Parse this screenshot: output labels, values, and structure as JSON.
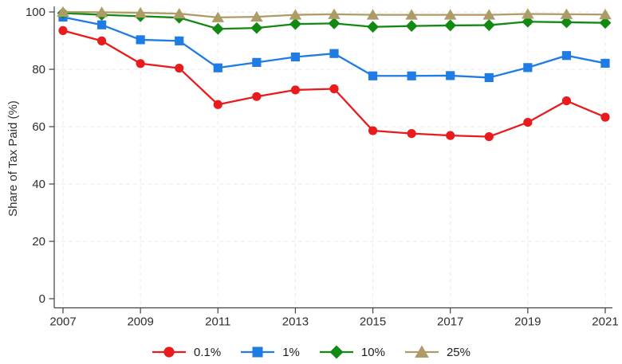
{
  "chart_data": {
    "type": "line",
    "title": "",
    "xlabel": "",
    "ylabel": "Share of Tax Paid (%)",
    "x": [
      2007,
      2008,
      2009,
      2010,
      2011,
      2012,
      2013,
      2014,
      2015,
      2016,
      2017,
      2018,
      2019,
      2020,
      2021
    ],
    "series": [
      {
        "name": "0.1%",
        "marker": "circle",
        "color": "#e81b1d",
        "values": [
          93.5,
          89.9,
          82.0,
          80.4,
          67.7,
          70.5,
          72.8,
          73.2,
          58.6,
          57.6,
          56.9,
          56.5,
          61.5,
          69.0,
          63.3
        ]
      },
      {
        "name": "1%",
        "marker": "square",
        "color": "#1f7ce4",
        "values": [
          98.2,
          95.5,
          90.3,
          89.9,
          80.5,
          82.4,
          84.3,
          85.5,
          77.7,
          77.7,
          77.8,
          77.1,
          80.6,
          84.8,
          82.1
        ]
      },
      {
        "name": "10%",
        "marker": "diamond",
        "color": "#128a12",
        "values": [
          99.6,
          99.0,
          98.5,
          98.0,
          94.1,
          94.4,
          95.8,
          96.0,
          94.8,
          95.1,
          95.3,
          95.4,
          96.6,
          96.4,
          96.2
        ]
      },
      {
        "name": "25%",
        "marker": "triangle",
        "color": "#ad9c66",
        "values": [
          100.0,
          99.9,
          99.7,
          99.4,
          98.1,
          98.3,
          99.0,
          99.2,
          99.0,
          99.0,
          99.0,
          99.0,
          99.3,
          99.2,
          99.1
        ]
      }
    ],
    "ylim": [
      0,
      100
    ],
    "yticks": [
      0,
      20,
      40,
      60,
      80,
      100
    ],
    "xticks": [
      2007,
      2009,
      2011,
      2013,
      2015,
      2017,
      2019,
      2021
    ],
    "grid": "dashed-both",
    "legend_position": "bottom-center"
  },
  "colors": {
    "background": "#ffffff",
    "grid": "#ebebeb",
    "axis": "#404040",
    "tick_text": "#2f2f2f"
  }
}
